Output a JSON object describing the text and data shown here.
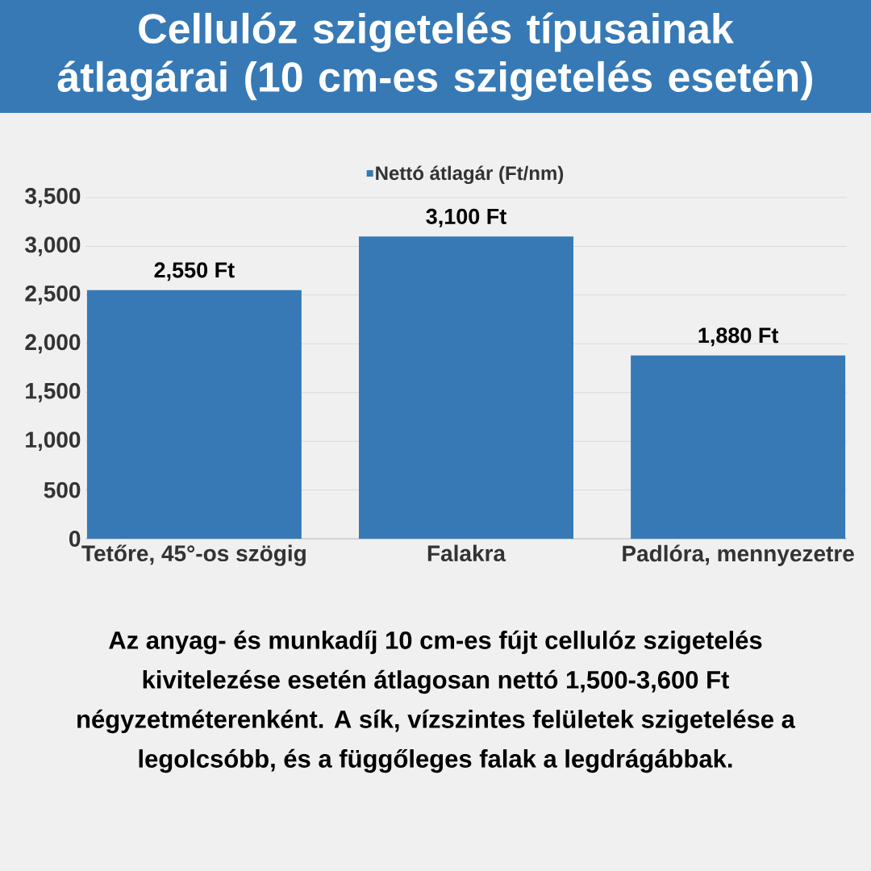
{
  "chart_data": {
    "type": "bar",
    "title": "Cellulóz szigetelés típusainak átlagárai (10 cm-es szigetelés esetén)",
    "categories": [
      "Tetőre, 45°-os szögig",
      "Falakra",
      "Padlóra, mennyezetre"
    ],
    "series": [
      {
        "name": "Nettó átlagár (Ft/nm)",
        "color": "#3679b5",
        "values": [
          2550,
          3100,
          1880
        ],
        "value_labels": [
          "2,550 Ft",
          "3,100 Ft",
          "1,880 Ft"
        ]
      }
    ],
    "ylim": [
      0,
      3500
    ],
    "yticks": [
      0,
      500,
      {
        "value": 1000,
        "label": "1,000"
      },
      {
        "value": 1500,
        "label": "1,500"
      },
      {
        "value": 2000,
        "label": "2,000"
      },
      {
        "value": 2500,
        "label": "2,500"
      },
      {
        "value": 3000,
        "label": "3,000"
      },
      {
        "value": 3500,
        "label": "3,500"
      }
    ],
    "grid": "y",
    "legend": "top",
    "annotations": [
      "Az anyag- és munkadíj 10 cm-es fújt cellulóz szigetelés kivitelezése esetén átlagosan nettó 1,500-3,600 Ft négyzetméterenként. A sík, vízszintes felületek szigetelése a legolcsóbb, és a függőleges falak a legdrágábbak."
    ]
  }
}
